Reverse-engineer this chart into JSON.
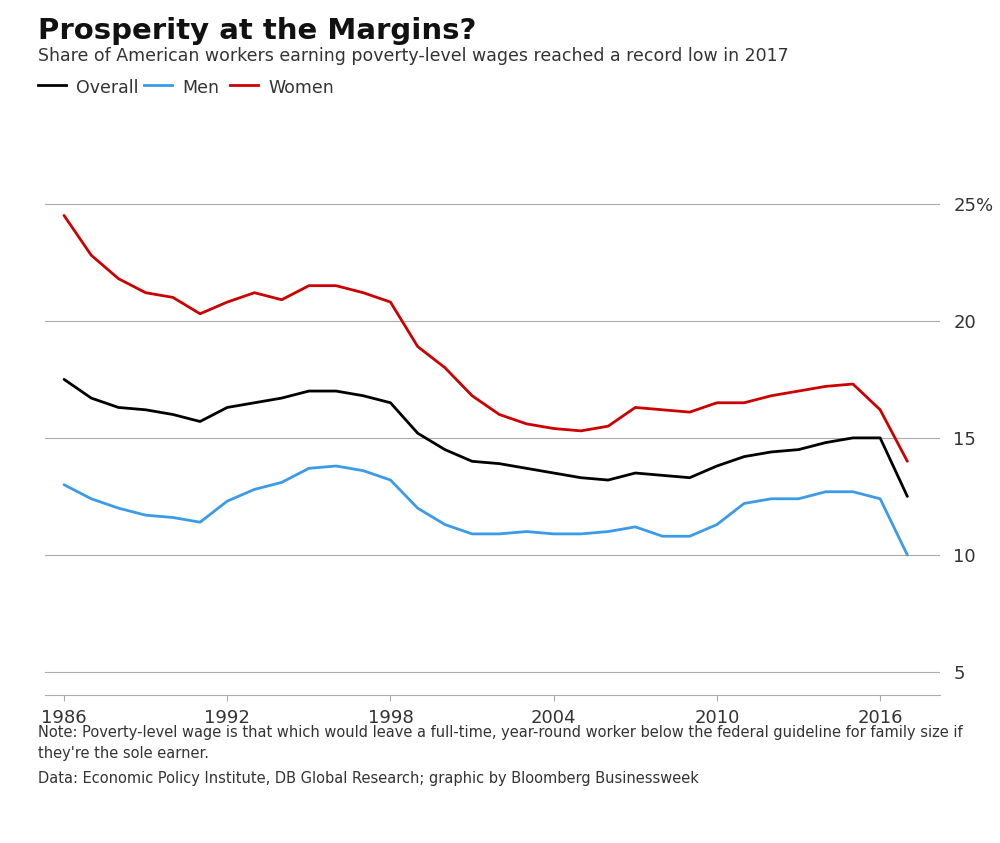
{
  "title": "Prosperity at the Margins?",
  "subtitle": "Share of American workers earning poverty-level wages reached a record low in 2017",
  "note_line1": "Note: Poverty-level wage is that which would leave a full-time, year-round worker below the federal guideline for family size if",
  "note_line2": "they're the sole earner.",
  "source": "Data: Economic Policy Institute, DB Global Research; graphic by Bloomberg Businessweek",
  "years": [
    1986,
    1987,
    1988,
    1989,
    1990,
    1991,
    1992,
    1993,
    1994,
    1995,
    1996,
    1997,
    1998,
    1999,
    2000,
    2001,
    2002,
    2003,
    2004,
    2005,
    2006,
    2007,
    2008,
    2009,
    2010,
    2011,
    2012,
    2013,
    2014,
    2015,
    2016,
    2017
  ],
  "overall": [
    17.5,
    16.7,
    16.3,
    16.2,
    16.0,
    15.7,
    16.3,
    16.5,
    16.7,
    17.0,
    17.0,
    16.8,
    16.5,
    15.2,
    14.5,
    14.0,
    13.9,
    13.7,
    13.5,
    13.3,
    13.2,
    13.5,
    13.4,
    13.3,
    13.8,
    14.2,
    14.4,
    14.5,
    14.8,
    15.0,
    15.0,
    12.5
  ],
  "men": [
    13.0,
    12.4,
    12.0,
    11.7,
    11.6,
    11.4,
    12.3,
    12.8,
    13.1,
    13.7,
    13.8,
    13.6,
    13.2,
    12.0,
    11.3,
    10.9,
    10.9,
    11.0,
    10.9,
    10.9,
    11.0,
    11.2,
    10.8,
    10.8,
    11.3,
    12.2,
    12.4,
    12.4,
    12.7,
    12.7,
    12.4,
    10.0
  ],
  "women": [
    24.5,
    22.8,
    21.8,
    21.2,
    21.0,
    20.3,
    20.8,
    21.2,
    20.9,
    21.5,
    21.5,
    21.2,
    20.8,
    18.9,
    18.0,
    16.8,
    16.0,
    15.6,
    15.4,
    15.3,
    15.5,
    16.3,
    16.2,
    16.1,
    16.5,
    16.5,
    16.8,
    17.0,
    17.2,
    17.3,
    16.2,
    14.0
  ],
  "overall_color": "#000000",
  "men_color": "#3b9be8",
  "women_color": "#cc0000",
  "background_color": "#ffffff",
  "grid_color": "#aaaaaa",
  "yticks": [
    5,
    10,
    15,
    20,
    25
  ],
  "xticks": [
    1986,
    1992,
    1998,
    2004,
    2010,
    2016
  ],
  "ylim": [
    4.0,
    26.5
  ],
  "xlim": [
    1985.3,
    2018.2
  ]
}
